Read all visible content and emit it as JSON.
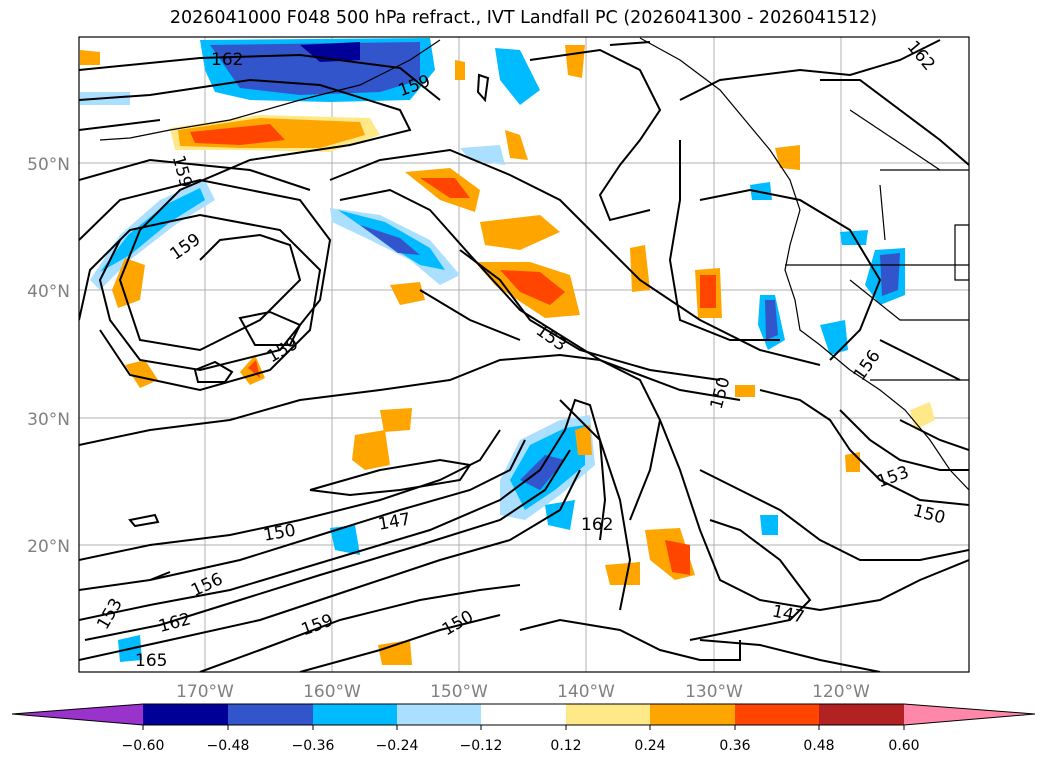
{
  "title": "2026041000 F048 500 hPa refract., IVT Landfall PC (2026041300 - 2026041512)",
  "map": {
    "lat_labels": [
      "50°N",
      "40°N",
      "30°N",
      "20°N"
    ],
    "lon_labels": [
      "170°W",
      "160°W",
      "150°W",
      "140°W",
      "130°W",
      "120°W"
    ],
    "contour_labels": [
      "162",
      "159",
      "159",
      "159",
      "159",
      "162",
      "153",
      "150",
      "156",
      "153",
      "150",
      "147",
      "150",
      "162",
      "156",
      "162",
      "153",
      "159",
      "150",
      "147",
      "165"
    ]
  },
  "colorbar": {
    "ticks": [
      "−0.60",
      "−0.48",
      "−0.36",
      "−0.24",
      "−0.12",
      "0.12",
      "0.24",
      "0.36",
      "0.48",
      "0.60"
    ],
    "colors": [
      "#9933cc",
      "#000099",
      "#3355cc",
      "#00bbff",
      "#aadfff",
      "#ffffff",
      "#ffe888",
      "#ffa500",
      "#ff4500",
      "#b22222",
      "#ff88aa"
    ]
  }
}
